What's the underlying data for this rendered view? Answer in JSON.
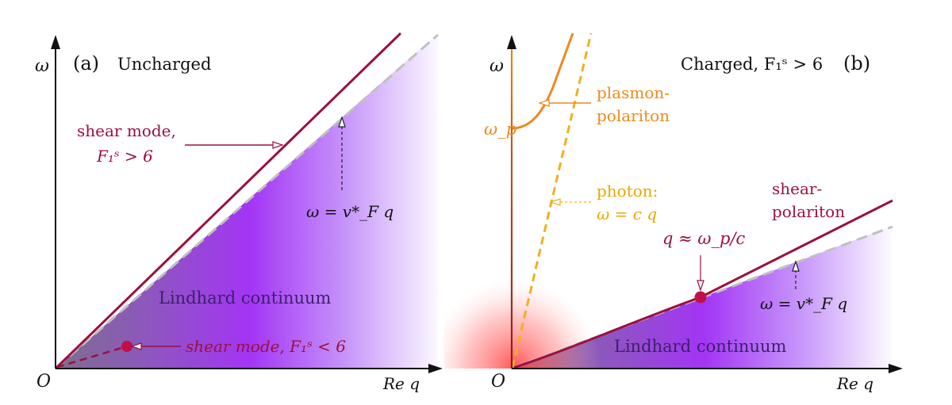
{
  "panel_a": {
    "tag": "(a)",
    "title": "Uncharged",
    "y_axis_label": "ω",
    "origin_label": "O",
    "x_axis_label": "Re q",
    "continuum_label": "Lindhard continuum",
    "shear_upper_label_line1": "shear mode,",
    "shear_upper_label_line2": "F₁ˢ > 6",
    "velocity_label": "ω = v*_F q",
    "shear_lower_label": "shear mode, F₁ˢ < 6"
  },
  "panel_b": {
    "tag": "(b)",
    "title": "Charged, F₁ˢ > 6",
    "y_axis_label": "ω",
    "origin_label": "O",
    "x_axis_label": "Re q",
    "plasma_freq_label": "ω_p",
    "plasmon_label_line1": "plasmon-",
    "plasmon_label_line2": "polariton",
    "photon_label_line1": "photon:",
    "photon_label_line2": "ω = c q",
    "shear_label_line1": "shear-",
    "shear_label_line2": "polariton",
    "crossing_label": "q ≈ ω_p/c",
    "velocity_label": "ω = v*_F q",
    "continuum_label": "Lindhard continuum"
  },
  "colors": {
    "shear": "#9b1040",
    "plasmon": "#ee8a1a",
    "photon": "#f0b020",
    "continuum": "#a335f5",
    "boundary": "#c0c0c0",
    "axis": "#111111"
  }
}
